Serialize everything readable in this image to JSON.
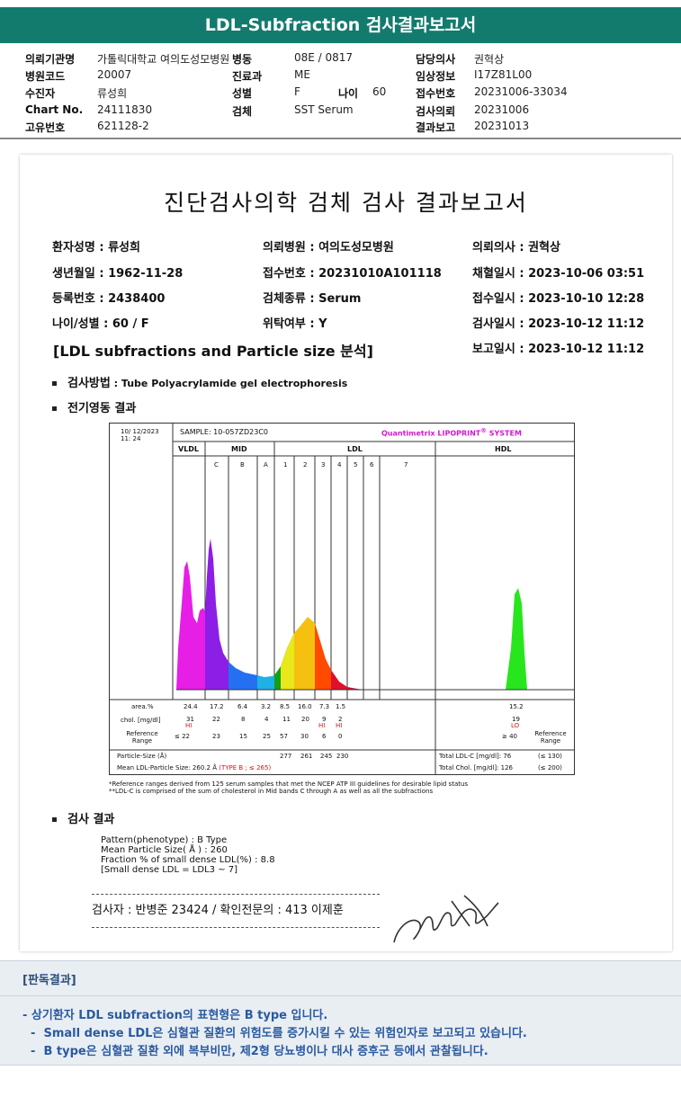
{
  "title": "LDL-Subfraction 검사결과보고서",
  "header": {
    "col1": [
      {
        "label": "의뢰기관명",
        "value": "가톨릭대학교 여의도성모병원"
      },
      {
        "label": "병원코드",
        "value": "20007"
      },
      {
        "label": "수진자",
        "value": "류성희"
      },
      {
        "label": "Chart No.",
        "value": "24111830"
      },
      {
        "label": "고유번호",
        "value": "621128-2"
      }
    ],
    "col2": [
      {
        "label": "병동",
        "value": "08E / 0817"
      },
      {
        "label": "진료과",
        "value": "ME"
      },
      {
        "label": "성별",
        "value": "F"
      },
      {
        "label": "검체",
        "value": "SST Serum"
      }
    ],
    "age_label": "나이",
    "age_value": "60",
    "col3": [
      {
        "label": "담당의사",
        "value": "권혁상"
      },
      {
        "label": "임상정보",
        "value": "I17Z81L00"
      },
      {
        "label": "접수번호",
        "value": "20231006-33034"
      },
      {
        "label": "검사의뢰",
        "value": "20231006"
      },
      {
        "label": "결과보고",
        "value": "20231013"
      }
    ]
  },
  "report": {
    "title": "진단검사의학 검체 검사 결과보고서",
    "patient_col1": [
      "환자성명 : 류성희",
      "생년월일 : 1962-11-28",
      "등록번호 : 2438400",
      "나이/성별 : 60 / F"
    ],
    "patient_col2": [
      "의뢰병원 : 여의도성모병원",
      "접수번호 : 20231010A101118",
      "검체종류 : Serum",
      "위탁여부 : Y"
    ],
    "patient_col3": [
      "의뢰의사 : 권혁상",
      "채혈일시 : 2023-10-06 03:51",
      "접수일시 : 2023-10-10 12:28",
      "검사일시 : 2023-10-12 11:12",
      "보고일시 : 2023-10-12 11:12"
    ],
    "section_title": "[LDL subfractions and Particle size 분석]",
    "method_label": "검사방법",
    "method_value": " : Tube Polyacrylamide gel electrophoresis",
    "electro_label": "전기영동 결과",
    "results_label": "검사 결과",
    "results_lines": [
      "Pattern(phenotype) : B Type",
      "Mean Particle Size( Å ) : 260",
      "Fraction % of small dense LDL(%) : 8.8",
      "[Small dense LDL = LDL3 ~ 7]"
    ],
    "signature_text": "검사자 : 반병준  23424  /  확인전문의 : 413  이제훈"
  },
  "chart_data": {
    "type": "area",
    "date": "10/ 12/2023",
    "time": "11: 24",
    "sample": "SAMPLE:   10-057ZD23C0",
    "brand": "Quantimetrix LIPOPRINT",
    "brand_r": "®",
    "brand_sys": "SYSTEM",
    "regions": [
      "VLDL",
      "MID",
      "LDL",
      "HDL"
    ],
    "bands": [
      "C",
      "B",
      "A",
      "1",
      "2",
      "3",
      "4",
      "5",
      "6",
      "7"
    ],
    "area_label": "area.%",
    "area": [
      "24.4",
      "17.2",
      "6.4",
      "3.2",
      "8.5",
      "16.0",
      "7.3",
      "1.5",
      "15.2"
    ],
    "chol_label": "chol. [mg/dl]",
    "chol": [
      "31",
      "22",
      "8",
      "4",
      "11",
      "20",
      "9",
      "2",
      "19"
    ],
    "flags": [
      "HI",
      "",
      "",
      "",
      "",
      "",
      "HI",
      "HI",
      "LO"
    ],
    "ref_label": "Reference Range",
    "ref": [
      "≤ 22",
      "23",
      "15",
      "25",
      "57",
      "30",
      "6",
      "0",
      "≥ 40"
    ],
    "ref_label_r": "Reference Range",
    "size_label": "Particle-Size (Å)",
    "sizes": [
      "277",
      "261",
      "245",
      "230"
    ],
    "total_ldl": "Total LDL-C [mg/dl]:  76",
    "total_ldl_ref": "(≤ 130)",
    "mean_size": "Mean LDL-Particle Size:   260.2 Å",
    "type_label": "(TYPE B ; ≤ 265)",
    "total_chol": "Total Chol. [mg/dl]:   126",
    "total_chol_ref": "(≤ 200)",
    "footnote1": "*Reference ranges derived from 125 serum samples that met the NCEP ATP III guidelines for desirable lipid status",
    "footnote2": "**LDL-C is comprised of the sum of cholesterol in Mid bands C through A as well as all the subfractions"
  },
  "opinion": {
    "heading": "[판독결과]",
    "lines": [
      "- 상기환자 LDL subfraction의 표현형은 B type 입니다.",
      "  -  Small dense LDL은 심혈관 질환의 위험도를 증가시킬 수 있는 위험인자로 보고되고 있습니다.",
      "  -  B type은 심혈관 질환 외에 복부비만, 제2형 당뇨병이나 대사 증후군 등에서 관찰됩니다."
    ]
  },
  "colors": {
    "title_bar": "#137a6e",
    "opinion": "#2a5aa0"
  }
}
